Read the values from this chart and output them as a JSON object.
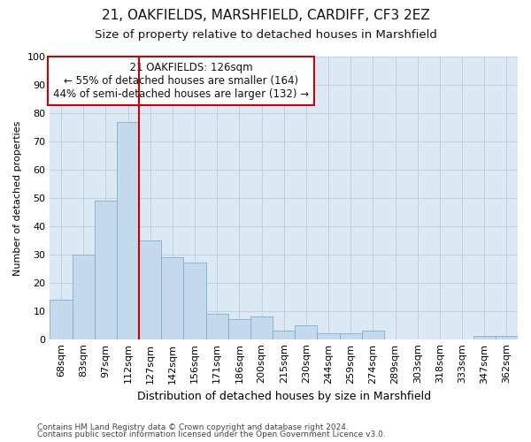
{
  "title1": "21, OAKFIELDS, MARSHFIELD, CARDIFF, CF3 2EZ",
  "title2": "Size of property relative to detached houses in Marshfield",
  "xlabel": "Distribution of detached houses by size in Marshfield",
  "ylabel": "Number of detached properties",
  "categories": [
    "68sqm",
    "83sqm",
    "97sqm",
    "112sqm",
    "127sqm",
    "142sqm",
    "156sqm",
    "171sqm",
    "186sqm",
    "200sqm",
    "215sqm",
    "230sqm",
    "244sqm",
    "259sqm",
    "274sqm",
    "289sqm",
    "303sqm",
    "318sqm",
    "333sqm",
    "347sqm",
    "362sqm"
  ],
  "values": [
    14,
    30,
    49,
    77,
    35,
    29,
    27,
    9,
    7,
    8,
    3,
    5,
    2,
    2,
    3,
    0,
    0,
    0,
    0,
    1,
    1
  ],
  "bar_color": "#c5d9ed",
  "bar_edge_color": "#7bafd4",
  "grid_color": "#c0d0e0",
  "background_color": "#dce9f5",
  "vline_color": "#cc0000",
  "vline_bar_index": 4,
  "annotation_title": "21 OAKFIELDS: 126sqm",
  "annotation_line1": "← 55% of detached houses are smaller (164)",
  "annotation_line2": "44% of semi-detached houses are larger (132) →",
  "annotation_box_facecolor": "#ffffff",
  "annotation_box_edgecolor": "#cc0000",
  "footnote1": "Contains HM Land Registry data © Crown copyright and database right 2024.",
  "footnote2": "Contains public sector information licensed under the Open Government Licence v3.0.",
  "ylim": [
    0,
    100
  ],
  "yticks": [
    0,
    10,
    20,
    30,
    40,
    50,
    60,
    70,
    80,
    90,
    100
  ],
  "title1_fontsize": 11,
  "title2_fontsize": 9.5,
  "xlabel_fontsize": 9,
  "ylabel_fontsize": 8,
  "tick_fontsize": 8,
  "annot_fontsize": 8.5,
  "footnote_fontsize": 6.5
}
